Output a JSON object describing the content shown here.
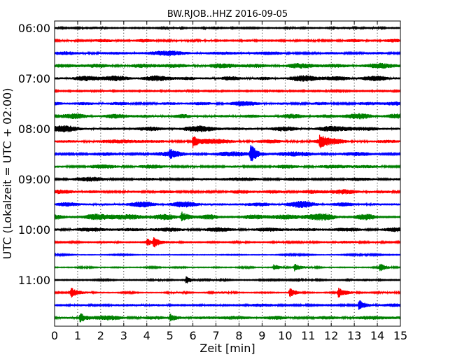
{
  "chart_data": {
    "type": "line",
    "title": "BW.RJOB..HHZ 2016-09-05",
    "xlabel": "Zeit  [min]",
    "ylabel": "UTC (Lokalzeit = UTC + 02:00)",
    "xlim": [
      0,
      15
    ],
    "x_ticks": [
      "0",
      "1",
      "2",
      "3",
      "4",
      "5",
      "6",
      "7",
      "8",
      "9",
      "10",
      "11",
      "12",
      "13",
      "14",
      "15"
    ],
    "y_tick_labels": [
      "06:00",
      "07:00",
      "08:00",
      "09:00",
      "10:00",
      "11:00"
    ],
    "grid": "vertical dotted",
    "trace_minutes": 15,
    "colors": [
      "#000000",
      "#ff0000",
      "#0000ff",
      "#008000"
    ],
    "traces": [
      {
        "start": "06:00",
        "amp": 0.25
      },
      {
        "start": "06:15",
        "amp": 0.3
      },
      {
        "start": "06:30",
        "amp": 0.45
      },
      {
        "start": "06:45",
        "amp": 0.5
      },
      {
        "start": "07:00",
        "amp": 0.6
      },
      {
        "start": "07:15",
        "amp": 0.3
      },
      {
        "start": "07:30",
        "amp": 0.45
      },
      {
        "start": "07:45",
        "amp": 0.55
      },
      {
        "start": "08:00",
        "amp": 0.6
      },
      {
        "start": "08:15",
        "amp": 0.5,
        "events": [
          {
            "x": 6.0,
            "a": 1.2
          },
          {
            "x": 11.5,
            "a": 1.1
          }
        ]
      },
      {
        "start": "08:30",
        "amp": 0.45,
        "events": [
          {
            "x": 8.5,
            "a": 2.0
          },
          {
            "x": 5.0,
            "a": 0.7
          }
        ]
      },
      {
        "start": "08:45",
        "amp": 0.4
      },
      {
        "start": "09:00",
        "amp": 0.4
      },
      {
        "start": "09:15",
        "amp": 0.45
      },
      {
        "start": "09:30",
        "amp": 0.6
      },
      {
        "start": "09:45",
        "amp": 0.7,
        "events": [
          {
            "x": 5.5,
            "a": 1.0
          }
        ]
      },
      {
        "start": "10:00",
        "amp": 0.4
      },
      {
        "start": "10:15",
        "amp": 0.25,
        "events": [
          {
            "x": 4.3,
            "a": 1.0
          },
          {
            "x": 4.0,
            "a": 0.8
          }
        ]
      },
      {
        "start": "10:30",
        "amp": 0.15
      },
      {
        "start": "10:45",
        "amp": 0.2,
        "events": [
          {
            "x": 9.5,
            "a": 0.7
          },
          {
            "x": 10.4,
            "a": 0.8
          },
          {
            "x": 14.1,
            "a": 0.9
          }
        ]
      },
      {
        "start": "11:00",
        "amp": 0.25,
        "events": [
          {
            "x": 5.7,
            "a": 0.8
          }
        ]
      },
      {
        "start": "11:15",
        "amp": 0.2,
        "events": [
          {
            "x": 0.7,
            "a": 1.0
          },
          {
            "x": 10.2,
            "a": 1.0
          },
          {
            "x": 12.3,
            "a": 1.0
          }
        ]
      },
      {
        "start": "11:30",
        "amp": 0.3,
        "events": [
          {
            "x": 13.2,
            "a": 1.2
          }
        ]
      },
      {
        "start": "11:45",
        "amp": 0.45,
        "events": [
          {
            "x": 1.1,
            "a": 1.0
          },
          {
            "x": 5.0,
            "a": 0.8
          }
        ]
      }
    ]
  }
}
